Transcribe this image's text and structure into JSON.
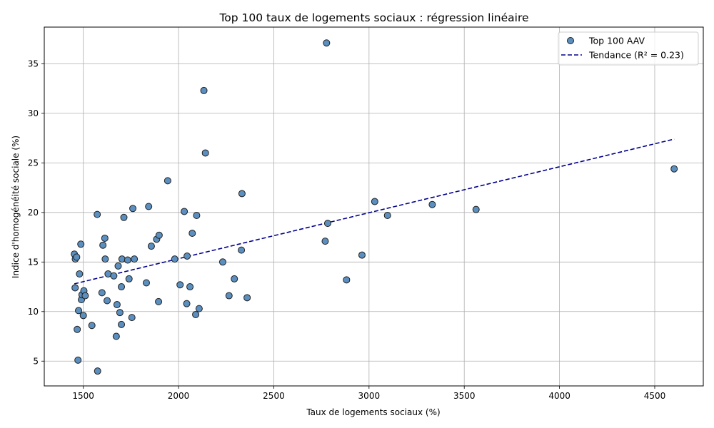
{
  "chart_data": {
    "type": "scatter",
    "title": "Top 100 taux de logements sociaux : régression linéaire",
    "xlabel": "Taux de logements sociaux (%)",
    "ylabel": "Indice d'homogénéité sociale (%)",
    "xlim": [
      1295,
      4755
    ],
    "ylim": [
      2.5,
      38.7
    ],
    "xticks": [
      1500,
      2000,
      2500,
      3000,
      3500,
      4000,
      4500
    ],
    "yticks": [
      5,
      10,
      15,
      20,
      25,
      30,
      35
    ],
    "grid": true,
    "legend_position": "top-right",
    "colors": {
      "marker_fill": "#5b8fbf",
      "marker_edge": "#1f1f1f",
      "trend": "#00008b",
      "grid": "#b0b0b0"
    },
    "series": [
      {
        "name": "Top 100 AAV",
        "kind": "scatter",
        "points": [
          [
            1453,
            15.8
          ],
          [
            1458,
            15.3
          ],
          [
            1465,
            15.5
          ],
          [
            1457,
            12.4
          ],
          [
            1468,
            8.2
          ],
          [
            1472,
            5.1
          ],
          [
            1475,
            10.1
          ],
          [
            1480,
            13.8
          ],
          [
            1487,
            16.8
          ],
          [
            1490,
            11.2
          ],
          [
            1493,
            11.7
          ],
          [
            1500,
            9.6
          ],
          [
            1503,
            12.1
          ],
          [
            1510,
            11.6
          ],
          [
            1545,
            8.6
          ],
          [
            1573,
            19.8
          ],
          [
            1575,
            4.0
          ],
          [
            1598,
            11.9
          ],
          [
            1603,
            16.7
          ],
          [
            1613,
            17.4
          ],
          [
            1615,
            15.3
          ],
          [
            1625,
            11.1
          ],
          [
            1630,
            13.8
          ],
          [
            1660,
            13.6
          ],
          [
            1673,
            7.5
          ],
          [
            1677,
            10.7
          ],
          [
            1683,
            14.6
          ],
          [
            1692,
            9.9
          ],
          [
            1700,
            8.7
          ],
          [
            1700,
            12.5
          ],
          [
            1703,
            15.3
          ],
          [
            1713,
            19.5
          ],
          [
            1733,
            15.2
          ],
          [
            1740,
            13.3
          ],
          [
            1755,
            9.4
          ],
          [
            1760,
            20.4
          ],
          [
            1768,
            15.3
          ],
          [
            1831,
            12.9
          ],
          [
            1843,
            20.6
          ],
          [
            1857,
            16.6
          ],
          [
            1885,
            17.3
          ],
          [
            1895,
            11.0
          ],
          [
            1898,
            17.7
          ],
          [
            1943,
            23.2
          ],
          [
            1980,
            15.3
          ],
          [
            2008,
            12.7
          ],
          [
            2030,
            20.1
          ],
          [
            2043,
            10.8
          ],
          [
            2045,
            15.6
          ],
          [
            2060,
            12.5
          ],
          [
            2072,
            17.9
          ],
          [
            2090,
            9.7
          ],
          [
            2095,
            19.7
          ],
          [
            2108,
            10.3
          ],
          [
            2133,
            32.3
          ],
          [
            2141,
            26.0
          ],
          [
            2232,
            15.0
          ],
          [
            2265,
            11.6
          ],
          [
            2293,
            13.3
          ],
          [
            2330,
            16.2
          ],
          [
            2333,
            21.9
          ],
          [
            2360,
            11.4
          ],
          [
            2770,
            17.1
          ],
          [
            2777,
            37.1
          ],
          [
            2783,
            18.9
          ],
          [
            2882,
            13.2
          ],
          [
            2963,
            15.7
          ],
          [
            3030,
            21.1
          ],
          [
            3097,
            19.7
          ],
          [
            3332,
            20.8
          ],
          [
            3562,
            20.3
          ],
          [
            4602,
            24.4
          ]
        ]
      },
      {
        "name": "Tendance (R² = 0.23)",
        "kind": "line",
        "style": "dashed",
        "x": [
          1453,
          4602
        ],
        "y": [
          12.8,
          27.4
        ]
      }
    ]
  }
}
